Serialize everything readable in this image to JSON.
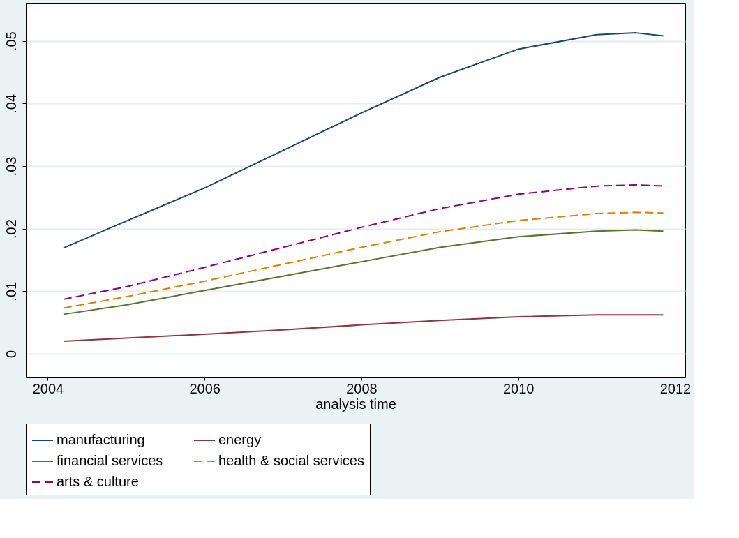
{
  "chart_data": {
    "type": "line",
    "xlabel": "analysis time",
    "xlim": [
      2003.72,
      2012.13
    ],
    "xticks": [
      2004,
      2006,
      2008,
      2010,
      2012
    ],
    "ylim": [
      -0.0037,
      0.056
    ],
    "yticks": [
      0,
      {
        "value": 0.01,
        "label": ".01"
      },
      {
        "value": 0.02,
        "label": ".02"
      },
      {
        "value": 0.03,
        "label": ".03"
      },
      {
        "value": 0.04,
        "label": ".04"
      },
      {
        "value": 0.05,
        "label": ".05"
      }
    ],
    "grid": "y",
    "legend": "bottom",
    "marker": "none",
    "x": [
      2004.2,
      2005,
      2006,
      2007,
      2008,
      2009,
      2010,
      2011,
      2011.5,
      2011.85
    ],
    "series": [
      {
        "name": "manufacturing",
        "color": "#1a476f",
        "line_style": "solid",
        "values": [
          0.0169,
          0.0212,
          0.0265,
          0.0325,
          0.0385,
          0.0442,
          0.0487,
          0.051,
          0.0513,
          0.0508
        ]
      },
      {
        "name": "energy",
        "color": "#90353b",
        "line_style": "solid",
        "values": [
          0.002,
          0.0025,
          0.0031,
          0.0038,
          0.0046,
          0.0053,
          0.0059,
          0.0062,
          0.0062,
          0.0062
        ]
      },
      {
        "name": "financial services",
        "color": "#55752f",
        "line_style": "solid",
        "values": [
          0.0063,
          0.0078,
          0.0101,
          0.0124,
          0.0147,
          0.017,
          0.0187,
          0.0196,
          0.0198,
          0.0196
        ]
      },
      {
        "name": "health & social services",
        "color": "#e37e00",
        "line_style": "dashed",
        "values": [
          0.0073,
          0.0091,
          0.0116,
          0.0143,
          0.017,
          0.0195,
          0.0213,
          0.0224,
          0.0226,
          0.0225
        ]
      },
      {
        "name": "arts & culture",
        "color": "#8b008b",
        "line_style": "dashed",
        "values": [
          0.0087,
          0.0107,
          0.0138,
          0.017,
          0.0202,
          0.0232,
          0.0255,
          0.0268,
          0.027,
          0.0268
        ]
      }
    ]
  }
}
